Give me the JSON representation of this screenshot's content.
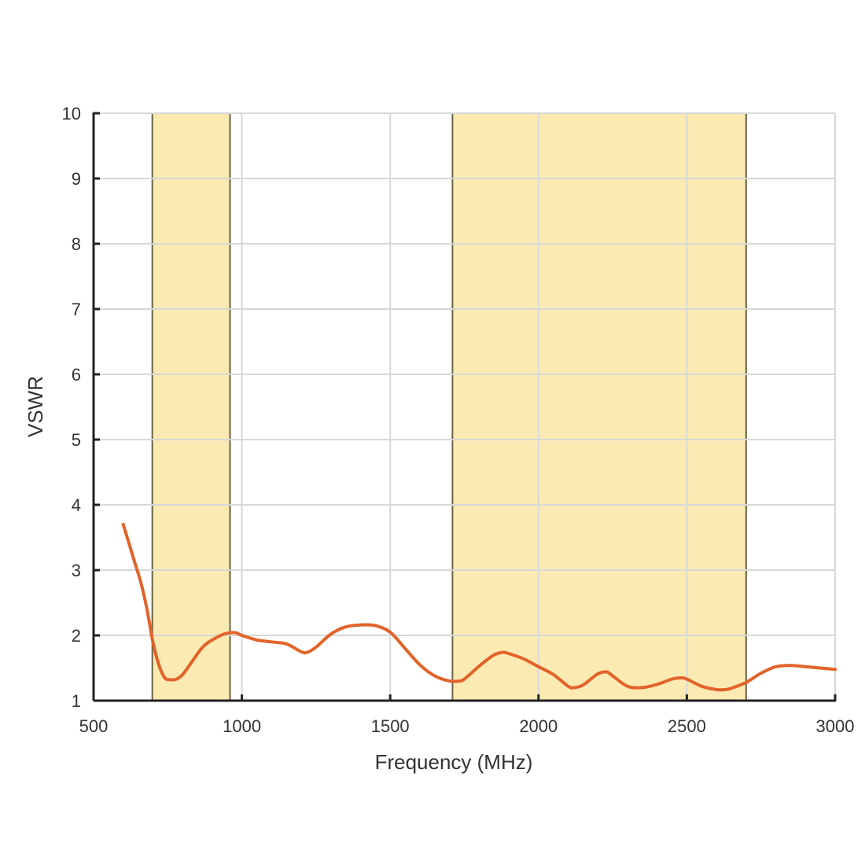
{
  "chart_data": {
    "type": "line",
    "title": "",
    "xlabel": "Frequency (MHz)",
    "ylabel": "VSWR",
    "xlim": [
      500,
      3000
    ],
    "ylim": [
      1,
      10
    ],
    "x_ticks": [
      500,
      1000,
      1500,
      2000,
      2500,
      3000
    ],
    "y_ticks": [
      1,
      2,
      3,
      4,
      5,
      6,
      7,
      8,
      9,
      10
    ],
    "x_tick_labels": [
      "500",
      "1000",
      "1500",
      "2000",
      "2500",
      "3000"
    ],
    "y_tick_labels": [
      "1",
      "2",
      "3",
      "4",
      "5",
      "6",
      "7",
      "8",
      "9",
      "10"
    ],
    "grid": true,
    "legend": "none",
    "colors": {
      "line": "#e2632a",
      "band_fill": "#fbeab2",
      "band_edge": "#6b6343",
      "grid": "#d8d8d8",
      "axis": "#222222"
    },
    "bands": [
      {
        "x_start": 698,
        "x_end": 960
      },
      {
        "x_start": 1710,
        "x_end": 2700
      }
    ],
    "series": [
      {
        "x": [
          600,
          620,
          640,
          660,
          680,
          700,
          720,
          740,
          760,
          780,
          800,
          820,
          840,
          860,
          880,
          900,
          920,
          940,
          960,
          980,
          1000,
          1050,
          1100,
          1150,
          1200,
          1220,
          1250,
          1300,
          1350,
          1400,
          1450,
          1500,
          1550,
          1600,
          1650,
          1700,
          1730,
          1750,
          1800,
          1850,
          1880,
          1900,
          1950,
          2000,
          2050,
          2100,
          2120,
          2150,
          2200,
          2230,
          2250,
          2300,
          2350,
          2400,
          2450,
          2480,
          2500,
          2550,
          2600,
          2630,
          2650,
          2700,
          2750,
          2800,
          2850,
          2900,
          2950,
          3000
        ],
        "y": [
          3.7,
          3.4,
          3.1,
          2.8,
          2.4,
          1.9,
          1.55,
          1.35,
          1.32,
          1.33,
          1.4,
          1.52,
          1.65,
          1.78,
          1.87,
          1.93,
          1.98,
          2.02,
          2.04,
          2.04,
          2.0,
          1.93,
          1.9,
          1.87,
          1.75,
          1.74,
          1.82,
          2.02,
          2.13,
          2.16,
          2.15,
          2.05,
          1.8,
          1.55,
          1.38,
          1.3,
          1.3,
          1.33,
          1.53,
          1.7,
          1.74,
          1.72,
          1.64,
          1.52,
          1.4,
          1.22,
          1.2,
          1.24,
          1.41,
          1.44,
          1.38,
          1.22,
          1.2,
          1.25,
          1.33,
          1.35,
          1.33,
          1.22,
          1.17,
          1.17,
          1.19,
          1.28,
          1.42,
          1.52,
          1.54,
          1.52,
          1.5,
          1.48
        ]
      }
    ]
  }
}
